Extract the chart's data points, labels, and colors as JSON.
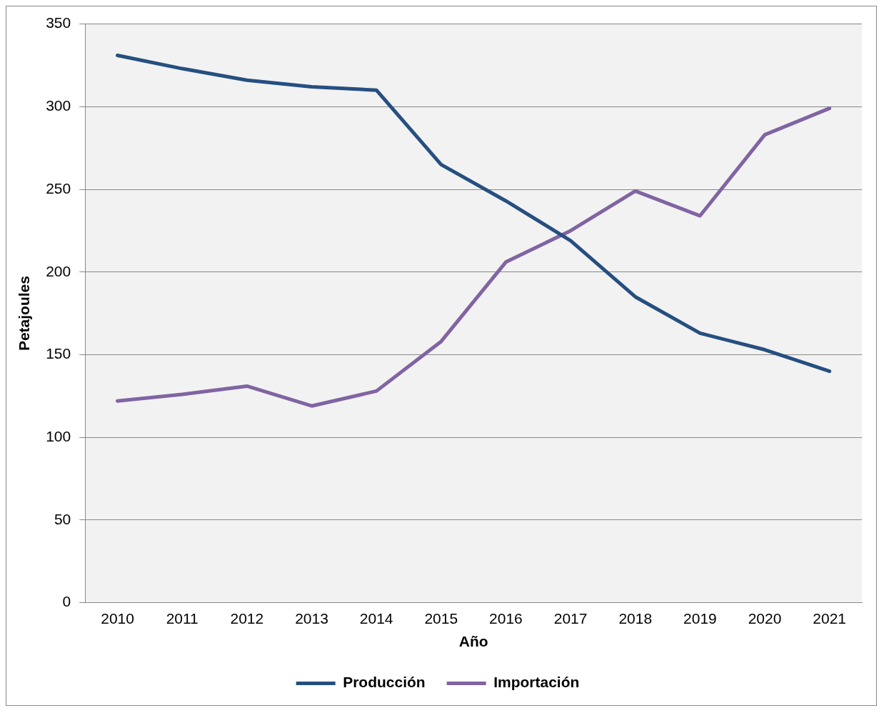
{
  "chart_data": {
    "type": "line",
    "xlabel": "Año",
    "ylabel": "Petajoules",
    "categories": [
      "2010",
      "2011",
      "2012",
      "2013",
      "2014",
      "2015",
      "2016",
      "2017",
      "2018",
      "2019",
      "2020",
      "2021"
    ],
    "series": [
      {
        "name": "Producción",
        "color": "#264f80",
        "values": [
          331,
          323,
          316,
          312,
          310,
          265,
          243,
          219,
          185,
          163,
          153,
          140
        ]
      },
      {
        "name": "Importación",
        "color": "#8064a2",
        "values": [
          122,
          126,
          131,
          119,
          128,
          158,
          206,
          225,
          249,
          234,
          283,
          299
        ]
      }
    ],
    "ylim": [
      0,
      350
    ],
    "yticks": [
      0,
      50,
      100,
      150,
      200,
      250,
      300,
      350
    ],
    "grid": "y",
    "legend": "bottom"
  }
}
